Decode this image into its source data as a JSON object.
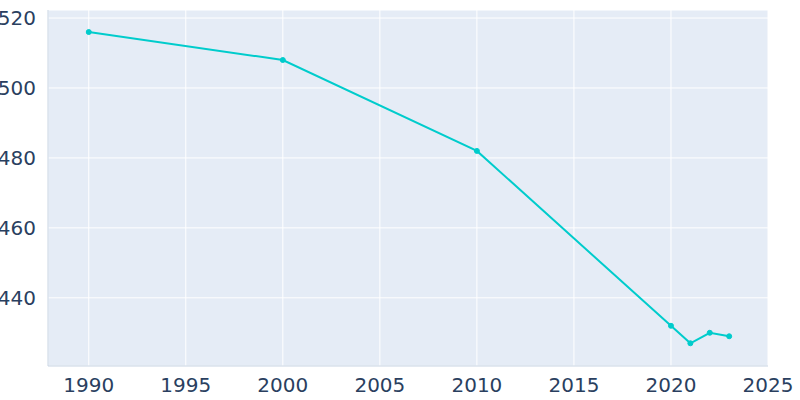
{
  "chart_data": {
    "type": "line",
    "x": [
      1990,
      2000,
      2010,
      2020,
      2021,
      2022,
      2023
    ],
    "values": [
      516,
      508,
      482,
      432,
      427,
      430,
      429
    ],
    "color": "#00cccc",
    "marker": "circle",
    "xlim": [
      1987.9,
      2025
    ],
    "xticks": [
      1990,
      1995,
      2000,
      2005,
      2010,
      2015,
      2020,
      2025
    ],
    "ylim": [
      420.5,
      522.3
    ],
    "yticks": [
      440,
      460,
      480,
      500,
      520
    ],
    "grid": true
  }
}
